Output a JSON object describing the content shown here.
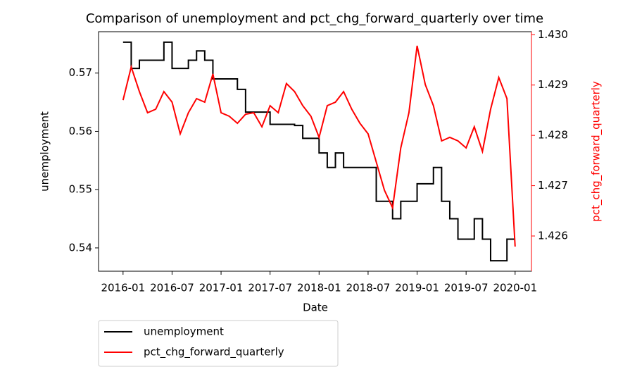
{
  "chart_data": {
    "type": "line",
    "step": "post",
    "title": "Comparison of unemployment and pct_chg_forward_quarterly over time",
    "xlabel": "Date",
    "ylabel": "unemployment",
    "y2label": "pct_chg_forward_quarterly",
    "y2label_color": "#ff0000",
    "x": [
      "2016-01",
      "2016-02",
      "2016-03",
      "2016-04",
      "2016-05",
      "2016-06",
      "2016-07",
      "2016-08",
      "2016-09",
      "2016-10",
      "2016-11",
      "2016-12",
      "2017-01",
      "2017-02",
      "2017-03",
      "2017-04",
      "2017-05",
      "2017-06",
      "2017-07",
      "2017-08",
      "2017-09",
      "2017-10",
      "2017-11",
      "2017-12",
      "2018-01",
      "2018-02",
      "2018-03",
      "2018-04",
      "2018-05",
      "2018-06",
      "2018-07",
      "2018-08",
      "2018-09",
      "2018-10",
      "2018-11",
      "2018-12",
      "2019-01",
      "2019-02",
      "2019-03",
      "2019-04",
      "2019-05",
      "2019-06",
      "2019-07",
      "2019-08",
      "2019-09",
      "2019-10",
      "2019-11",
      "2019-12",
      "2020-01"
    ],
    "series": [
      {
        "name": "unemployment",
        "color": "#000000",
        "step": true,
        "values": [
          0.5753,
          0.5708,
          0.5722,
          0.5722,
          0.5722,
          0.5753,
          0.5708,
          0.5708,
          0.5722,
          0.5738,
          0.5722,
          0.569,
          0.569,
          0.569,
          0.5672,
          0.5633,
          0.5633,
          0.5633,
          0.5612,
          0.5612,
          0.5612,
          0.561,
          0.5588,
          0.5588,
          0.5563,
          0.5538,
          0.5563,
          0.5538,
          0.5538,
          0.5538,
          0.5538,
          0.548,
          0.548,
          0.545,
          0.548,
          0.548,
          0.551,
          0.551,
          0.5538,
          0.548,
          0.545,
          0.5415,
          0.5415,
          0.545,
          0.5415,
          0.5378,
          0.5378,
          0.5415,
          0.5415
        ]
      },
      {
        "name": "pct_chg_forward_quarterly",
        "color": "#ff0000",
        "axis": "y2",
        "step": false,
        "values": [
          1.4287,
          1.42936,
          1.42887,
          1.42845,
          1.42852,
          1.42887,
          1.42866,
          1.42803,
          1.42845,
          1.42873,
          1.42866,
          1.42922,
          1.42845,
          1.42838,
          1.42824,
          1.42842,
          1.42845,
          1.42817,
          1.42859,
          1.42845,
          1.42903,
          1.42887,
          1.42859,
          1.42838,
          1.42796,
          1.42859,
          1.42866,
          1.42887,
          1.42852,
          1.42824,
          1.42803,
          1.42747,
          1.42691,
          1.42656,
          1.42775,
          1.42845,
          1.42978,
          1.42901,
          1.42859,
          1.42789,
          1.42796,
          1.42789,
          1.42775,
          1.42817,
          1.42768,
          1.42852,
          1.42915,
          1.42873,
          1.42579
        ]
      }
    ],
    "xlim": [
      "2015-10",
      "2020-03"
    ],
    "xticks": [
      "2016-01",
      "2016-07",
      "2017-01",
      "2017-07",
      "2018-01",
      "2018-07",
      "2019-01",
      "2019-07",
      "2020-01"
    ],
    "ylim": [
      0.536,
      0.5771
    ],
    "yticks": [
      0.54,
      0.55,
      0.56,
      0.57
    ],
    "y2lim": [
      1.4253,
      1.43006
    ],
    "y2ticks": [
      1.426,
      1.427,
      1.428,
      1.429,
      {
        "value": 1.43,
        "label": "1.430"
      }
    ],
    "legend": "below-left"
  }
}
